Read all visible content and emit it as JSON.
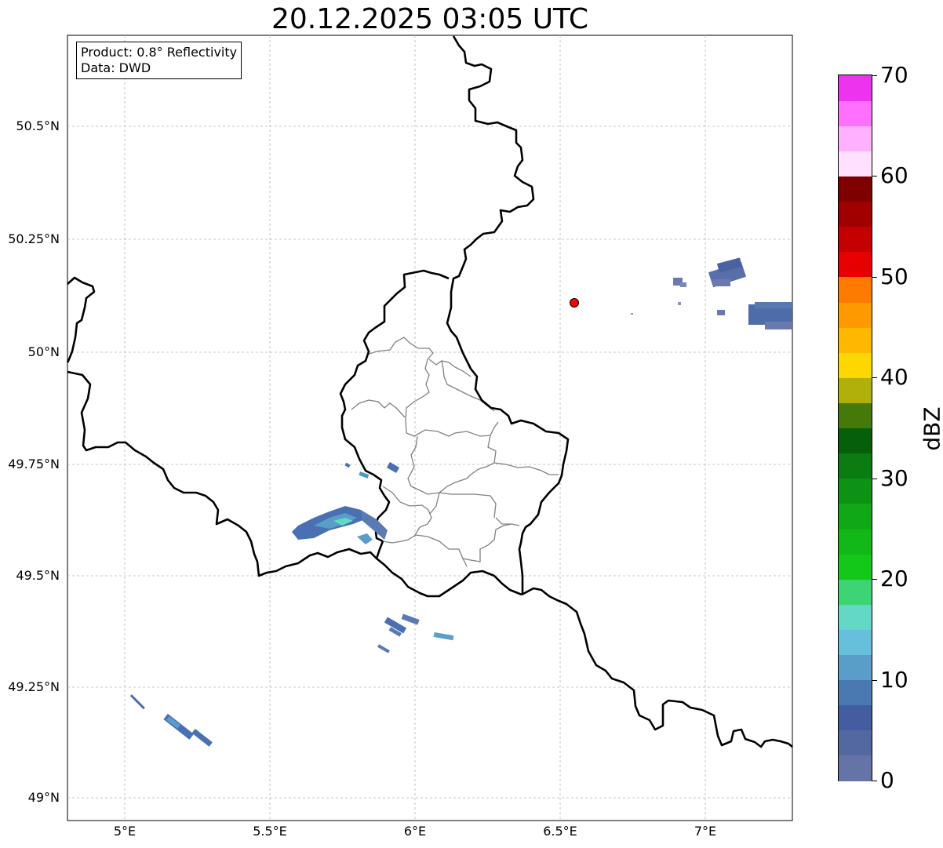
{
  "title": "20.12.2025 03:05 UTC",
  "info": {
    "product": "Product: 0.8° Reflectivity",
    "data": "Data: DWD"
  },
  "latitude_labels": [
    "50.5°N",
    "50.25°N",
    "50°N",
    "49.75°N",
    "49.5°N",
    "49.25°N",
    "49°N"
  ],
  "longitude_labels": [
    "5°E",
    "5.5°E",
    "6°E",
    "6.5°E",
    "7°E"
  ],
  "colorbar": {
    "unit": "dBZ",
    "tick_labels": [
      "0",
      "10",
      "20",
      "30",
      "40",
      "50",
      "60",
      "70"
    ],
    "min": 0,
    "max": 70,
    "step": 2.5,
    "colors": [
      "#6673a6",
      "#5468a0",
      "#435da0",
      "#4a79b2",
      "#5a9dc8",
      "#66c0dc",
      "#63d8c6",
      "#3dd474",
      "#14c81a",
      "#12b818",
      "#10a816",
      "#0d9214",
      "#0a7c12",
      "#065f0a",
      "#457a0a",
      "#b0b00a",
      "#ffd700",
      "#ffb700",
      "#ff9900",
      "#ff7b00",
      "#e60000",
      "#c40000",
      "#a00000",
      "#800000",
      "#ffe0ff",
      "#ffb0ff",
      "#ff70ff",
      "#ee33ee"
    ]
  },
  "radar_site": {
    "lon": 6.55,
    "lat": 50.11,
    "color": "#ff0000"
  },
  "map_extent": {
    "lon_min": 4.8,
    "lon_max": 7.3,
    "lat_min": 48.95,
    "lat_max": 50.7
  }
}
